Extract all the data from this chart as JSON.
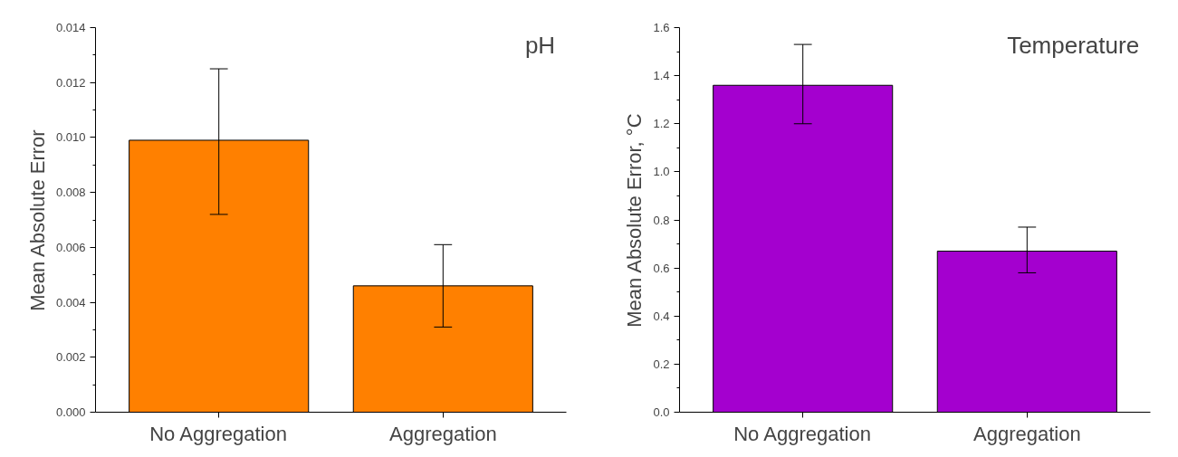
{
  "chart_data": [
    {
      "type": "bar",
      "title": "pH",
      "ylabel": "Mean Absolute Error",
      "categories": [
        "No Aggregation",
        "Aggregation"
      ],
      "values": [
        0.0099,
        0.0046
      ],
      "errors": [
        [
          0.0072,
          0.0125
        ],
        [
          0.0031,
          0.0061
        ]
      ],
      "color": "#ff8000",
      "ylim": [
        0,
        0.014
      ],
      "yticks": [
        {
          "value": 0,
          "label": "0.000"
        },
        0.002,
        0.004,
        0.006,
        0.008,
        {
          "value": 0.01,
          "label": "0.010"
        },
        0.012,
        0.014
      ],
      "grid": false
    },
    {
      "type": "bar",
      "title": "Temperature",
      "ylabel": "Mean Absolute Error, °C",
      "categories": [
        "No Aggregation",
        "Aggregation"
      ],
      "values": [
        1.36,
        0.67
      ],
      "errors": [
        [
          1.2,
          1.53
        ],
        [
          0.58,
          0.77
        ]
      ],
      "color": "#a400cf",
      "ylim": [
        0,
        1.6
      ],
      "yticks": [
        {
          "value": 0,
          "label": "0.0"
        },
        0.2,
        0.4,
        0.6,
        0.8,
        {
          "value": 1,
          "label": "1.0"
        },
        1.2,
        1.4,
        1.6
      ],
      "grid": false
    }
  ]
}
